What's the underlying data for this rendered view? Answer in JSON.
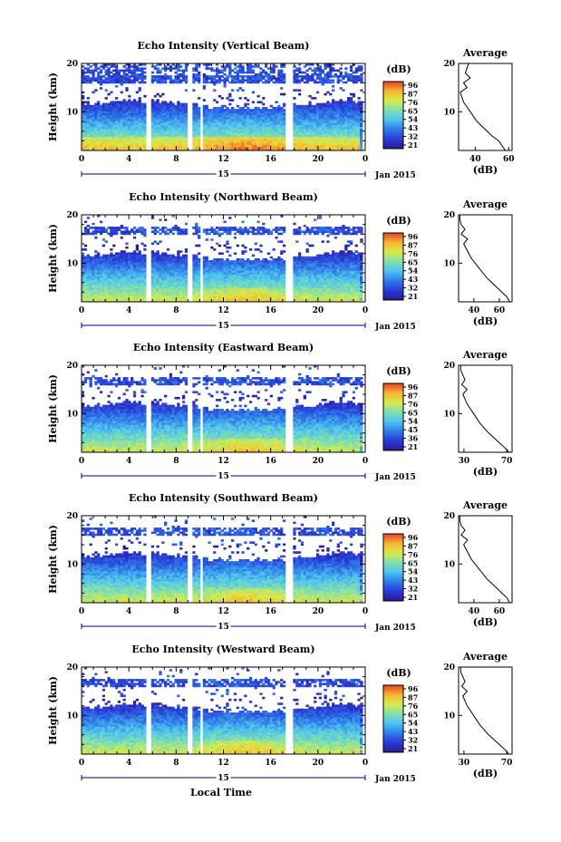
{
  "chart_data": [
    {
      "type": "heatmap",
      "title": "Echo Intensity (Vertical Beam)",
      "ylabel": "Height (km)",
      "ylim": [
        2,
        20
      ],
      "yticks": [
        "20",
        "10"
      ],
      "xlim": [
        0,
        24
      ],
      "xticks": [
        "0",
        "4",
        "8",
        "12",
        "16",
        "20",
        "0"
      ],
      "date_center": "15",
      "date_label": "Jan 2015",
      "colorbar": {
        "unit": "(dB)",
        "ticks": [
          "96",
          "87",
          "76",
          "65",
          "54",
          "43",
          "32",
          "21"
        ],
        "range": [
          21,
          96
        ]
      },
      "average": {
        "title": "Average",
        "xlabel": "(dB)",
        "xticks": [
          "40",
          "60"
        ],
        "xlim": [
          30,
          62
        ],
        "height": [
          2,
          3,
          4,
          5,
          6,
          7,
          8,
          9,
          10,
          11,
          12,
          13,
          14,
          15,
          16,
          17,
          18,
          19,
          20
        ],
        "values": [
          58,
          56,
          54,
          50,
          47,
          44,
          41,
          39,
          37,
          35,
          33,
          32,
          31,
          35,
          33,
          37,
          34,
          35,
          36
        ]
      }
    },
    {
      "type": "heatmap",
      "title": "Echo Intensity (Northward Beam)",
      "ylabel": "Height (km)",
      "ylim": [
        2,
        20
      ],
      "yticks": [
        "20",
        "10"
      ],
      "xlim": [
        0,
        24
      ],
      "xticks": [
        "0",
        "4",
        "8",
        "12",
        "16",
        "20",
        "0"
      ],
      "date_center": "15",
      "date_label": "Jan 2015",
      "colorbar": {
        "unit": "(dB)",
        "ticks": [
          "96",
          "87",
          "76",
          "65",
          "54",
          "43",
          "32",
          "21"
        ],
        "range": [
          21,
          96
        ]
      },
      "average": {
        "title": "Average",
        "xlabel": "(dB)",
        "xticks": [
          "40",
          "60"
        ],
        "xlim": [
          28,
          70
        ],
        "height": [
          2,
          3,
          4,
          5,
          6,
          7,
          8,
          9,
          10,
          11,
          12,
          13,
          14,
          15,
          16,
          17,
          18,
          19,
          20
        ],
        "values": [
          68,
          66,
          62,
          58,
          54,
          50,
          47,
          44,
          41,
          38,
          36,
          34,
          32,
          35,
          30,
          33,
          30,
          29,
          29
        ]
      }
    },
    {
      "type": "heatmap",
      "title": "Echo Intensity (Eastward Beam)",
      "ylabel": "Height (km)",
      "ylim": [
        2,
        20
      ],
      "yticks": [
        "20",
        "10"
      ],
      "xlim": [
        0,
        24
      ],
      "xticks": [
        "0",
        "4",
        "8",
        "12",
        "16",
        "20",
        "0"
      ],
      "date_center": "15",
      "date_label": "Jan 2015",
      "colorbar": {
        "unit": "(dB)",
        "ticks": [
          "96",
          "87",
          "76",
          "65",
          "54",
          "45",
          "36",
          "21"
        ],
        "range": [
          21,
          96
        ]
      },
      "average": {
        "title": "Average",
        "xlabel": "(dB)",
        "xticks": [
          "30",
          "70"
        ],
        "xlim": [
          25,
          75
        ],
        "height": [
          2,
          3,
          4,
          5,
          6,
          7,
          8,
          9,
          10,
          11,
          12,
          13,
          14,
          15,
          16,
          17,
          18,
          19,
          20
        ],
        "values": [
          72,
          68,
          63,
          58,
          53,
          49,
          45,
          42,
          39,
          36,
          33,
          31,
          29,
          33,
          28,
          31,
          29,
          27,
          27
        ]
      }
    },
    {
      "type": "heatmap",
      "title": "Echo Intensity (Southward Beam)",
      "ylabel": "Height (km)",
      "ylim": [
        2,
        20
      ],
      "yticks": [
        "20",
        "10"
      ],
      "xlim": [
        0,
        24
      ],
      "xticks": [
        "0",
        "4",
        "8",
        "12",
        "16",
        "20",
        "0"
      ],
      "date_center": "15",
      "date_label": "Jan 2015",
      "colorbar": {
        "unit": "(dB)",
        "ticks": [
          "96",
          "87",
          "76",
          "65",
          "54",
          "43",
          "32",
          "21"
        ],
        "range": [
          21,
          96
        ]
      },
      "average": {
        "title": "Average",
        "xlabel": "(dB)",
        "xticks": [
          "40",
          "60"
        ],
        "xlim": [
          28,
          70
        ],
        "height": [
          2,
          3,
          4,
          5,
          6,
          7,
          8,
          9,
          10,
          11,
          12,
          13,
          14,
          15,
          16,
          17,
          18,
          19,
          20
        ],
        "values": [
          68,
          66,
          62,
          58,
          54,
          50,
          47,
          44,
          41,
          38,
          36,
          34,
          32,
          35,
          30,
          33,
          30,
          29,
          29
        ]
      }
    },
    {
      "type": "heatmap",
      "title": "Echo Intensity (Westward Beam)",
      "ylabel": "Height (km)",
      "ylim": [
        2,
        20
      ],
      "yticks": [
        "20",
        "10"
      ],
      "xlim": [
        0,
        24
      ],
      "xticks": [
        "0",
        "4",
        "8",
        "12",
        "16",
        "20",
        "0"
      ],
      "date_center": "15",
      "date_label": "Jan 2015",
      "colorbar": {
        "unit": "(dB)",
        "ticks": [
          "96",
          "87",
          "76",
          "65",
          "54",
          "43",
          "32",
          "21"
        ],
        "range": [
          21,
          96
        ]
      },
      "average": {
        "title": "Average",
        "xlabel": "(dB)",
        "xticks": [
          "30",
          "70"
        ],
        "xlim": [
          25,
          75
        ],
        "height": [
          2,
          3,
          4,
          5,
          6,
          7,
          8,
          9,
          10,
          11,
          12,
          13,
          14,
          15,
          16,
          17,
          18,
          19,
          20
        ],
        "values": [
          72,
          68,
          63,
          58,
          53,
          49,
          45,
          42,
          39,
          36,
          33,
          31,
          29,
          33,
          28,
          31,
          29,
          27,
          27
        ]
      }
    }
  ],
  "shared_xlabel": "Local Time",
  "data_gaps_hours": [
    [
      5.5,
      6.0
    ],
    [
      8.9,
      9.3
    ],
    [
      10.0,
      10.3
    ],
    [
      17.3,
      17.8
    ]
  ],
  "colors": {
    "colormap": [
      "#2a1a8f",
      "#2a3ad6",
      "#2f7be8",
      "#4fc3f0",
      "#7fe0b0",
      "#d8ea4a",
      "#f7b731",
      "#e8402a"
    ],
    "axis": "#000000",
    "date_line": "#000080"
  }
}
